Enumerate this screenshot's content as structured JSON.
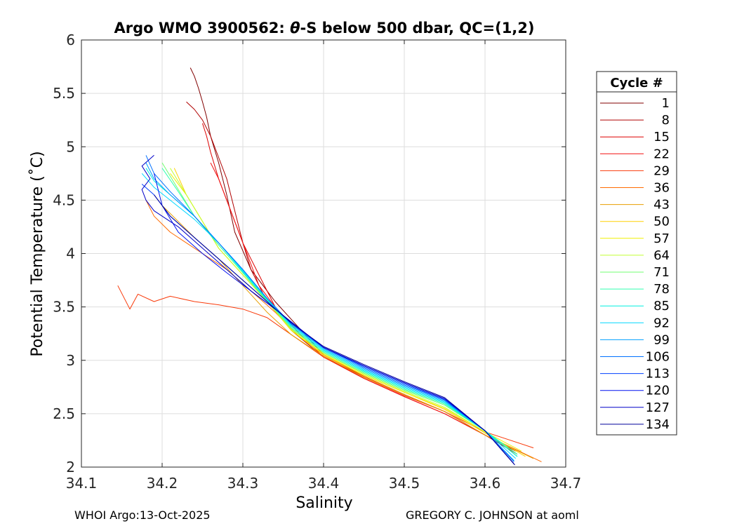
{
  "chart_data": {
    "type": "line",
    "title_prefix": "Argo WMO 3900562: ",
    "title_theta": "θ",
    "title_suffix": "-S below 500 dbar,  QC=(1,2)",
    "xlabel": "Salinity",
    "ylabel": "Potential Temperature (˚C)",
    "xlim": [
      34.1,
      34.7
    ],
    "ylim": [
      2,
      6
    ],
    "xticks": [
      34.1,
      34.2,
      34.3,
      34.4,
      34.5,
      34.6,
      34.7
    ],
    "yticks": [
      2,
      2.5,
      3,
      3.5,
      4,
      4.5,
      5,
      5.5,
      6
    ],
    "xtick_labels": [
      "34.1",
      "34.2",
      "34.3",
      "34.4",
      "34.5",
      "34.6",
      "34.7"
    ],
    "ytick_labels": [
      "2",
      "2.5",
      "3",
      "3.5",
      "4",
      "4.5",
      "5",
      "5.5",
      "6"
    ],
    "grid": true,
    "legend": {
      "title": "Cycle #",
      "placement": "outside-right",
      "entries": [
        {
          "label": "1",
          "color": "#800000"
        },
        {
          "label": "8",
          "color": "#b00000"
        },
        {
          "label": "15",
          "color": "#dd0000"
        },
        {
          "label": "22",
          "color": "#f21010"
        },
        {
          "label": "29",
          "color": "#f93a0a"
        },
        {
          "label": "36",
          "color": "#ff6a00"
        },
        {
          "label": "43",
          "color": "#e89e00"
        },
        {
          "label": "50",
          "color": "#ffd000"
        },
        {
          "label": "57",
          "color": "#f0f000"
        },
        {
          "label": "64",
          "color": "#c0ff30"
        },
        {
          "label": "71",
          "color": "#70ff70"
        },
        {
          "label": "78",
          "color": "#30ffb0"
        },
        {
          "label": "85",
          "color": "#00f0e0"
        },
        {
          "label": "92",
          "color": "#00d8ff"
        },
        {
          "label": "99",
          "color": "#00a0ff"
        },
        {
          "label": "106",
          "color": "#0070ff"
        },
        {
          "label": "113",
          "color": "#0040ff"
        },
        {
          "label": "120",
          "color": "#0010f0"
        },
        {
          "label": "127",
          "color": "#0000c8"
        },
        {
          "label": "134",
          "color": "#00009a"
        }
      ]
    },
    "series": [
      {
        "name": "1",
        "color": "#800000",
        "x": [
          34.638,
          34.6,
          34.55,
          34.5,
          34.45,
          34.4,
          34.37,
          34.34,
          34.31,
          34.29,
          34.28,
          34.27,
          34.26,
          34.255,
          34.25,
          34.245,
          34.24,
          34.235
        ],
        "y": [
          2.15,
          2.3,
          2.52,
          2.68,
          2.85,
          3.05,
          3.3,
          3.55,
          3.85,
          4.2,
          4.55,
          4.85,
          5.1,
          5.28,
          5.42,
          5.55,
          5.66,
          5.74
        ]
      },
      {
        "name": "8",
        "color": "#b00000",
        "x": [
          34.64,
          34.6,
          34.55,
          34.5,
          34.45,
          34.4,
          34.36,
          34.33,
          34.31,
          34.3,
          34.29,
          34.28,
          34.27,
          34.26,
          34.25,
          34.24,
          34.23
        ],
        "y": [
          2.12,
          2.3,
          2.52,
          2.68,
          2.85,
          3.03,
          3.28,
          3.55,
          3.85,
          4.1,
          4.4,
          4.7,
          4.9,
          5.1,
          5.25,
          5.35,
          5.42
        ]
      },
      {
        "name": "15",
        "color": "#dd0000",
        "x": [
          34.645,
          34.6,
          34.55,
          34.5,
          34.45,
          34.4,
          34.37,
          34.34,
          34.32,
          34.3,
          34.285,
          34.27,
          34.26,
          34.255,
          34.25
        ],
        "y": [
          2.14,
          2.3,
          2.5,
          2.66,
          2.83,
          3.03,
          3.25,
          3.5,
          3.8,
          4.1,
          4.4,
          4.7,
          4.95,
          5.1,
          5.22
        ]
      },
      {
        "name": "22",
        "color": "#f21010",
        "x": [
          34.65,
          34.6,
          34.55,
          34.5,
          34.45,
          34.4,
          34.37,
          34.34,
          34.32,
          34.31,
          34.3,
          34.29,
          34.28,
          34.27,
          34.26
        ],
        "y": [
          2.12,
          2.3,
          2.5,
          2.66,
          2.83,
          3.03,
          3.25,
          3.5,
          3.7,
          3.9,
          4.1,
          4.3,
          4.5,
          4.7,
          4.85
        ]
      },
      {
        "name": "29",
        "color": "#f93a0a",
        "x": [
          34.66,
          34.6,
          34.55,
          34.5,
          34.45,
          34.4,
          34.36,
          34.33,
          34.3,
          34.27,
          34.24,
          34.21,
          34.19,
          34.17,
          34.16,
          34.145
        ],
        "y": [
          2.18,
          2.33,
          2.52,
          2.67,
          2.84,
          3.03,
          3.24,
          3.4,
          3.48,
          3.52,
          3.55,
          3.6,
          3.55,
          3.62,
          3.48,
          3.7
        ]
      },
      {
        "name": "36",
        "color": "#ff6a00",
        "x": [
          34.67,
          34.6,
          34.55,
          34.5,
          34.45,
          34.4,
          34.37,
          34.34,
          34.31,
          34.28,
          34.25,
          34.23,
          34.21,
          34.19,
          34.18
        ],
        "y": [
          2.05,
          2.3,
          2.52,
          2.68,
          2.85,
          3.05,
          3.22,
          3.45,
          3.65,
          3.85,
          4.0,
          4.1,
          4.2,
          4.35,
          4.5
        ]
      },
      {
        "name": "43",
        "color": "#e89e00",
        "x": [
          34.66,
          34.6,
          34.55,
          34.5,
          34.45,
          34.4,
          34.36,
          34.33,
          34.3,
          34.27,
          34.24,
          34.22,
          34.2
        ],
        "y": [
          2.08,
          2.3,
          2.52,
          2.68,
          2.84,
          3.04,
          3.24,
          3.45,
          3.7,
          3.95,
          4.15,
          4.3,
          4.45
        ]
      },
      {
        "name": "50",
        "color": "#ffd000",
        "x": [
          34.65,
          34.6,
          34.55,
          34.5,
          34.45,
          34.4,
          34.36,
          34.33,
          34.3,
          34.27,
          34.25,
          34.23,
          34.215
        ],
        "y": [
          2.1,
          2.32,
          2.54,
          2.7,
          2.86,
          3.05,
          3.28,
          3.55,
          3.8,
          4.05,
          4.3,
          4.55,
          4.8
        ]
      },
      {
        "name": "57",
        "color": "#f0f000",
        "x": [
          34.645,
          34.6,
          34.55,
          34.5,
          34.45,
          34.4,
          34.36,
          34.33,
          34.3,
          34.27,
          34.25,
          34.23,
          34.21
        ],
        "y": [
          2.15,
          2.33,
          2.55,
          2.7,
          2.86,
          3.06,
          3.28,
          3.55,
          3.8,
          4.05,
          4.3,
          4.55,
          4.75
        ]
      },
      {
        "name": "64",
        "color": "#c0ff30",
        "x": [
          34.64,
          34.6,
          34.55,
          34.5,
          34.45,
          34.4,
          34.36,
          34.33,
          34.3,
          34.27,
          34.25,
          34.23,
          34.21
        ],
        "y": [
          2.12,
          2.33,
          2.56,
          2.71,
          2.87,
          3.07,
          3.29,
          3.55,
          3.8,
          4.05,
          4.3,
          4.55,
          4.8
        ]
      },
      {
        "name": "71",
        "color": "#70ff70",
        "x": [
          34.64,
          34.6,
          34.55,
          34.5,
          34.45,
          34.4,
          34.36,
          34.33,
          34.3,
          34.27,
          34.24,
          34.22,
          34.2
        ],
        "y": [
          2.1,
          2.34,
          2.58,
          2.72,
          2.88,
          3.07,
          3.3,
          3.55,
          3.82,
          4.08,
          4.35,
          4.6,
          4.85
        ]
      },
      {
        "name": "78",
        "color": "#30ffb0",
        "x": [
          34.64,
          34.6,
          34.55,
          34.5,
          34.45,
          34.4,
          34.36,
          34.33,
          34.3,
          34.27,
          34.24,
          34.22,
          34.2
        ],
        "y": [
          2.12,
          2.34,
          2.59,
          2.73,
          2.89,
          3.08,
          3.31,
          3.56,
          3.82,
          4.08,
          4.35,
          4.58,
          4.8
        ]
      },
      {
        "name": "85",
        "color": "#00f0e0",
        "x": [
          34.64,
          34.6,
          34.55,
          34.5,
          34.45,
          34.4,
          34.36,
          34.33,
          34.3,
          34.27,
          34.24,
          34.21,
          34.19,
          34.18
        ],
        "y": [
          2.1,
          2.34,
          2.6,
          2.74,
          2.9,
          3.09,
          3.32,
          3.57,
          3.83,
          4.1,
          4.35,
          4.55,
          4.68,
          4.8
        ]
      },
      {
        "name": "92",
        "color": "#00d8ff",
        "x": [
          34.638,
          34.6,
          34.55,
          34.5,
          34.45,
          34.4,
          34.36,
          34.33,
          34.3,
          34.27,
          34.24,
          34.21,
          34.19,
          34.175
        ],
        "y": [
          2.08,
          2.34,
          2.61,
          2.75,
          2.91,
          3.1,
          3.33,
          3.58,
          3.84,
          4.1,
          4.32,
          4.5,
          4.62,
          4.75
        ]
      },
      {
        "name": "99",
        "color": "#00a0ff",
        "x": [
          34.636,
          34.6,
          34.55,
          34.5,
          34.45,
          34.4,
          34.36,
          34.33,
          34.3,
          34.27,
          34.24,
          34.21,
          34.19,
          34.18
        ],
        "y": [
          2.06,
          2.34,
          2.62,
          2.76,
          2.92,
          3.11,
          3.34,
          3.58,
          3.85,
          4.1,
          4.35,
          4.55,
          4.7,
          4.85
        ]
      },
      {
        "name": "106",
        "color": "#0070ff",
        "x": [
          34.636,
          34.6,
          34.55,
          34.5,
          34.45,
          34.4,
          34.36,
          34.33,
          34.3,
          34.27,
          34.24,
          34.21,
          34.19,
          34.18
        ],
        "y": [
          2.05,
          2.34,
          2.63,
          2.77,
          2.93,
          3.12,
          3.34,
          3.58,
          3.85,
          4.1,
          4.35,
          4.58,
          4.75,
          4.92
        ]
      },
      {
        "name": "113",
        "color": "#0040ff",
        "x": [
          34.635,
          34.6,
          34.55,
          34.5,
          34.45,
          34.4,
          34.36,
          34.33,
          34.3,
          34.27,
          34.24,
          34.21,
          34.19,
          34.175
        ],
        "y": [
          2.04,
          2.34,
          2.63,
          2.78,
          2.94,
          3.12,
          3.35,
          3.55,
          3.75,
          3.95,
          4.15,
          4.35,
          4.55,
          4.65
        ]
      },
      {
        "name": "120",
        "color": "#0010f0",
        "x": [
          34.635,
          34.6,
          34.55,
          34.5,
          34.45,
          34.4,
          34.37,
          34.34,
          34.31,
          34.28,
          34.25,
          34.22,
          34.2,
          34.19
        ],
        "y": [
          2.04,
          2.34,
          2.64,
          2.79,
          2.95,
          3.12,
          3.3,
          3.48,
          3.65,
          3.82,
          4.0,
          4.2,
          4.45,
          4.75
        ]
      },
      {
        "name": "127",
        "color": "#0000c8",
        "x": [
          34.636,
          34.6,
          34.55,
          34.5,
          34.45,
          34.4,
          34.37,
          34.34,
          34.31,
          34.28,
          34.25,
          34.22,
          34.19,
          34.18,
          34.175,
          34.185,
          34.175,
          34.19
        ],
        "y": [
          2.03,
          2.34,
          2.64,
          2.79,
          2.95,
          3.12,
          3.3,
          3.48,
          3.65,
          3.85,
          4.05,
          4.25,
          4.4,
          4.5,
          4.6,
          4.7,
          4.82,
          4.92
        ]
      },
      {
        "name": "134",
        "color": "#00009a",
        "x": [
          34.637,
          34.6,
          34.55,
          34.5,
          34.45,
          34.4,
          34.36,
          34.33,
          34.3,
          34.27,
          34.24,
          34.21,
          34.19
        ],
        "y": [
          2.02,
          2.34,
          2.65,
          2.8,
          2.96,
          3.13,
          3.35,
          3.55,
          3.75,
          3.95,
          4.15,
          4.35,
          4.55
        ]
      }
    ]
  },
  "footer": {
    "left": "WHOI Argo:13-Oct-2025",
    "right": "GREGORY C. JOHNSON at aoml"
  }
}
